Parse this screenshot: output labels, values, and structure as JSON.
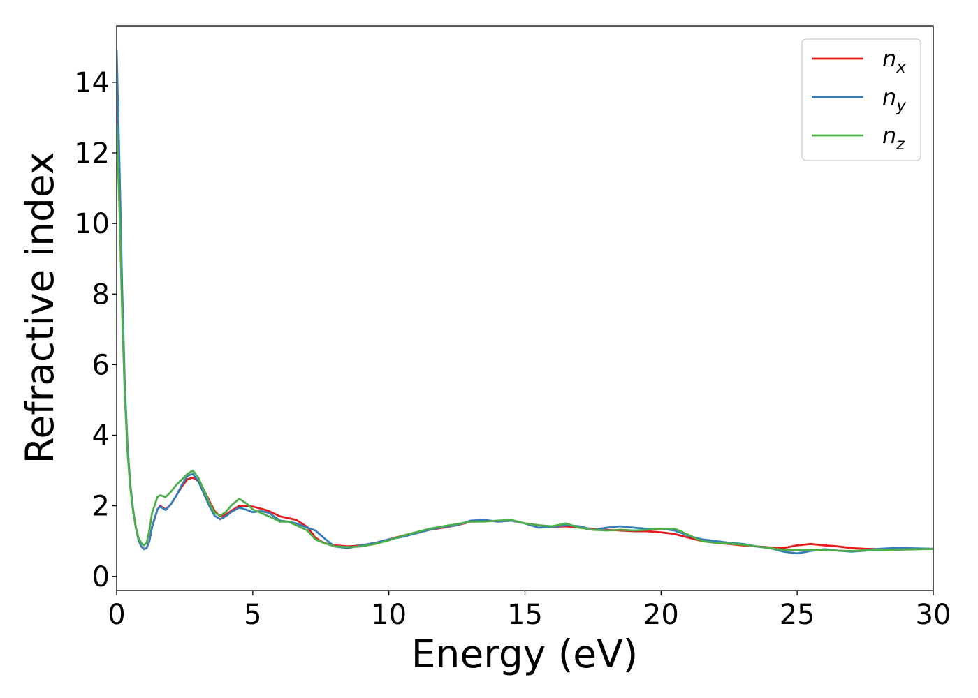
{
  "chart_data": {
    "type": "line",
    "xlabel": "Energy (eV)",
    "ylabel": "Refractive index",
    "xlim": [
      0,
      30
    ],
    "ylim": [
      -0.4,
      15.6
    ],
    "xticks": [
      0,
      5,
      10,
      15,
      20,
      25,
      30
    ],
    "yticks": [
      0,
      2,
      4,
      6,
      8,
      10,
      12,
      14
    ],
    "grid": false,
    "legend_position": "top-right",
    "series": [
      {
        "name": "n_x",
        "label_base": "n",
        "label_sub": "x",
        "color": "#e41a1c",
        "x": [
          0,
          0.1,
          0.2,
          0.3,
          0.4,
          0.5,
          0.6,
          0.7,
          0.8,
          0.9,
          1.0,
          1.1,
          1.2,
          1.3,
          1.5,
          1.6,
          1.8,
          2.0,
          2.2,
          2.4,
          2.6,
          2.8,
          3.0,
          3.2,
          3.4,
          3.6,
          3.8,
          4.0,
          4.2,
          4.5,
          4.8,
          5.0,
          5.3,
          5.6,
          6.0,
          6.3,
          6.6,
          7.0,
          7.3,
          7.6,
          8.0,
          8.5,
          9.0,
          9.5,
          10.0,
          10.5,
          11.0,
          11.5,
          12.0,
          12.5,
          13.0,
          13.5,
          14.0,
          14.5,
          15.0,
          15.5,
          16.0,
          16.5,
          17.0,
          17.5,
          18.0,
          18.5,
          19.0,
          19.5,
          20.0,
          20.5,
          21.0,
          21.5,
          22.0,
          22.5,
          23.0,
          23.5,
          24.0,
          24.5,
          25.0,
          25.5,
          26.0,
          26.5,
          27.0,
          27.5,
          28.0,
          28.5,
          29.0,
          29.5,
          30.0
        ],
        "y": [
          13.5,
          11.0,
          7.8,
          5.2,
          3.6,
          2.6,
          1.9,
          1.4,
          1.05,
          0.85,
          0.78,
          0.8,
          1.0,
          1.4,
          1.9,
          2.0,
          1.9,
          2.05,
          2.3,
          2.55,
          2.75,
          2.8,
          2.7,
          2.45,
          2.15,
          1.85,
          1.7,
          1.75,
          1.85,
          2.0,
          2.0,
          1.98,
          1.92,
          1.85,
          1.7,
          1.65,
          1.6,
          1.4,
          1.1,
          0.95,
          0.88,
          0.85,
          0.88,
          0.95,
          1.05,
          1.15,
          1.25,
          1.32,
          1.38,
          1.45,
          1.55,
          1.6,
          1.55,
          1.58,
          1.5,
          1.45,
          1.4,
          1.42,
          1.38,
          1.35,
          1.32,
          1.3,
          1.28,
          1.28,
          1.25,
          1.2,
          1.1,
          1.0,
          0.95,
          0.92,
          0.88,
          0.85,
          0.82,
          0.8,
          0.88,
          0.92,
          0.88,
          0.85,
          0.8,
          0.78,
          0.77,
          0.76,
          0.77,
          0.78,
          0.78
        ]
      },
      {
        "name": "n_y",
        "label_base": "n",
        "label_sub": "y",
        "color": "#377eb8",
        "x": [
          0,
          0.1,
          0.2,
          0.3,
          0.4,
          0.5,
          0.6,
          0.7,
          0.8,
          0.9,
          1.0,
          1.1,
          1.2,
          1.3,
          1.5,
          1.6,
          1.8,
          2.0,
          2.2,
          2.4,
          2.6,
          2.8,
          3.0,
          3.2,
          3.4,
          3.6,
          3.8,
          4.0,
          4.2,
          4.5,
          4.8,
          5.0,
          5.3,
          5.6,
          6.0,
          6.3,
          6.6,
          7.0,
          7.3,
          7.6,
          8.0,
          8.5,
          9.0,
          9.5,
          10.0,
          10.5,
          11.0,
          11.5,
          12.0,
          12.5,
          13.0,
          13.5,
          14.0,
          14.5,
          15.0,
          15.5,
          16.0,
          16.5,
          17.0,
          17.5,
          18.0,
          18.5,
          19.0,
          19.5,
          20.0,
          20.5,
          21.0,
          21.5,
          22.0,
          22.5,
          23.0,
          23.5,
          24.0,
          24.5,
          25.0,
          25.5,
          26.0,
          26.5,
          27.0,
          27.5,
          28.0,
          28.5,
          29.0,
          29.5,
          30.0
        ],
        "y": [
          14.9,
          11.8,
          8.2,
          5.4,
          3.7,
          2.6,
          1.9,
          1.4,
          1.05,
          0.85,
          0.77,
          0.8,
          1.0,
          1.4,
          1.9,
          1.98,
          1.88,
          2.05,
          2.3,
          2.6,
          2.85,
          2.9,
          2.7,
          2.35,
          2.0,
          1.72,
          1.62,
          1.7,
          1.82,
          1.95,
          1.88,
          1.82,
          1.85,
          1.8,
          1.58,
          1.55,
          1.5,
          1.38,
          1.3,
          1.1,
          0.85,
          0.8,
          0.88,
          0.95,
          1.05,
          1.12,
          1.22,
          1.32,
          1.4,
          1.45,
          1.58,
          1.6,
          1.55,
          1.58,
          1.5,
          1.38,
          1.4,
          1.45,
          1.42,
          1.32,
          1.38,
          1.42,
          1.38,
          1.35,
          1.35,
          1.3,
          1.15,
          1.05,
          1.0,
          0.95,
          0.92,
          0.85,
          0.8,
          0.7,
          0.65,
          0.72,
          0.77,
          0.73,
          0.7,
          0.73,
          0.78,
          0.8,
          0.8,
          0.79,
          0.78
        ]
      },
      {
        "name": "n_z",
        "label_base": "n",
        "label_sub": "z",
        "color": "#4daf4a",
        "x": [
          0,
          0.1,
          0.2,
          0.3,
          0.4,
          0.5,
          0.6,
          0.7,
          0.8,
          0.9,
          1.0,
          1.1,
          1.2,
          1.3,
          1.5,
          1.6,
          1.8,
          2.0,
          2.2,
          2.4,
          2.6,
          2.8,
          3.0,
          3.2,
          3.4,
          3.6,
          3.8,
          4.0,
          4.2,
          4.5,
          4.8,
          5.0,
          5.3,
          5.6,
          6.0,
          6.3,
          6.6,
          7.0,
          7.3,
          7.6,
          8.0,
          8.5,
          9.0,
          9.5,
          10.0,
          10.5,
          11.0,
          11.5,
          12.0,
          12.5,
          13.0,
          13.5,
          14.0,
          14.5,
          15.0,
          15.5,
          16.0,
          16.5,
          17.0,
          17.5,
          18.0,
          18.5,
          19.0,
          19.5,
          20.0,
          20.5,
          21.0,
          21.5,
          22.0,
          22.5,
          23.0,
          23.5,
          24.0,
          24.5,
          25.0,
          25.5,
          26.0,
          26.5,
          27.0,
          27.5,
          28.0,
          28.5,
          29.0,
          29.5,
          30.0
        ],
        "y": [
          12.8,
          10.5,
          7.5,
          5.1,
          3.5,
          2.5,
          1.85,
          1.4,
          1.1,
          0.95,
          0.88,
          0.95,
          1.3,
          1.8,
          2.25,
          2.3,
          2.25,
          2.4,
          2.6,
          2.75,
          2.9,
          3.0,
          2.8,
          2.45,
          2.1,
          1.8,
          1.72,
          1.82,
          2.0,
          2.2,
          2.05,
          1.9,
          1.8,
          1.7,
          1.55,
          1.55,
          1.45,
          1.3,
          1.05,
          0.95,
          0.85,
          0.83,
          0.85,
          0.92,
          1.02,
          1.15,
          1.25,
          1.35,
          1.42,
          1.48,
          1.55,
          1.55,
          1.58,
          1.6,
          1.5,
          1.45,
          1.42,
          1.5,
          1.38,
          1.32,
          1.3,
          1.32,
          1.3,
          1.32,
          1.35,
          1.35,
          1.18,
          1.0,
          0.95,
          0.93,
          0.9,
          0.85,
          0.8,
          0.75,
          0.75,
          0.75,
          0.75,
          0.73,
          0.72,
          0.74,
          0.74,
          0.75,
          0.76,
          0.77,
          0.78
        ]
      }
    ]
  }
}
